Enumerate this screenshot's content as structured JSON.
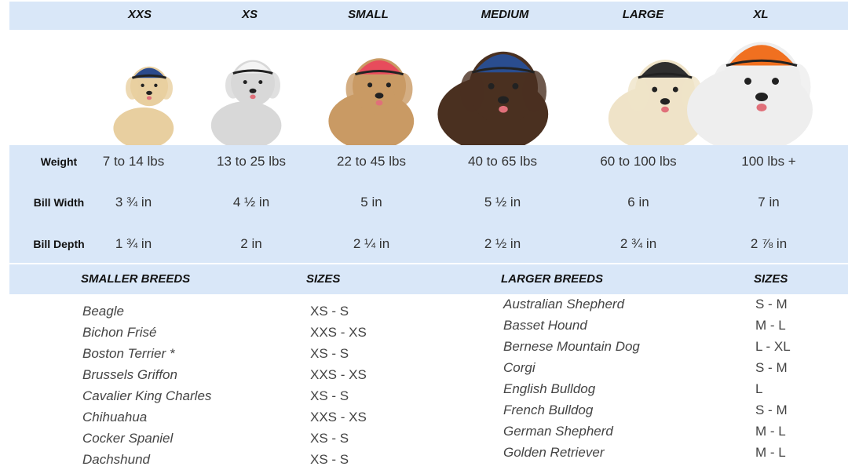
{
  "sizes": [
    "XXS",
    "XS",
    "SMALL",
    "MEDIUM",
    "LARGE",
    "XL"
  ],
  "measurements": [
    {
      "label": "Weight",
      "values": [
        "7 to 14 lbs",
        "13 to 25 lbs",
        "22 to 45 lbs",
        "40 to 65 lbs",
        "60 to 100 lbs",
        "100 lbs +"
      ]
    },
    {
      "label": "Bill Width",
      "values": [
        "3 ¾ in",
        "4 ½ in",
        "5 in",
        "5 ½ in",
        "6 in",
        "7 in"
      ]
    },
    {
      "label": "Bill Depth",
      "values": [
        "1 ¾ in",
        "2 in",
        "2 ¼ in",
        "2 ½ in",
        "2 ¾ in",
        "2 ⅞ in"
      ]
    }
  ],
  "smaller_breeds": {
    "header": "SMALLER BREEDS",
    "sizes_header": "SIZES",
    "rows": [
      [
        "Beagle",
        "XS - S"
      ],
      [
        "Bichon Frisé",
        "XXS - XS"
      ],
      [
        "Boston Terrier *",
        "XS - S"
      ],
      [
        "Brussels Griffon",
        "XXS - XS"
      ],
      [
        "Cavalier King Charles",
        "XS - S"
      ],
      [
        "Chihuahua",
        "XXS - XS"
      ],
      [
        "Cocker Spaniel",
        "XS - S"
      ],
      [
        "Dachshund",
        "XS - S"
      ]
    ]
  },
  "larger_breeds": {
    "header": "LARGER BREEDS",
    "sizes_header": "SIZES",
    "rows": [
      [
        "Australian Shepherd",
        "S - M"
      ],
      [
        "Basset Hound",
        "M - L"
      ],
      [
        "Bernese Mountain Dog",
        "L - XL"
      ],
      [
        "Corgi",
        "S - M"
      ],
      [
        "English Bulldog",
        "L"
      ],
      [
        "French Bulldog",
        "S - M"
      ],
      [
        "German Shepherd",
        "M - L"
      ],
      [
        "Golden Retriever",
        "M - L"
      ]
    ]
  }
}
